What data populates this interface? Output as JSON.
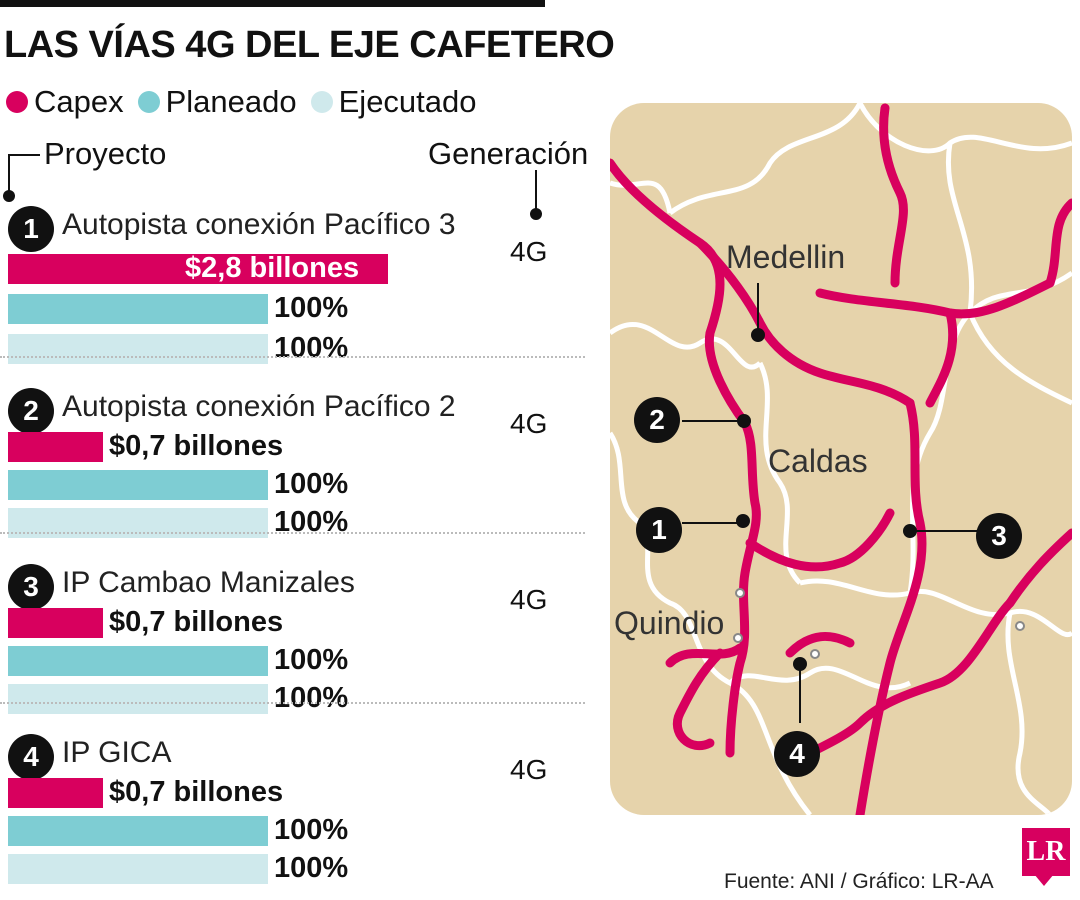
{
  "title": "LAS VÍAS 4G DEL EJE CAFETERO",
  "legend": [
    {
      "label": "Capex",
      "color": "#d8005e"
    },
    {
      "label": "Planeado",
      "color": "#7ecdd3"
    },
    {
      "label": "Ejecutado",
      "color": "#cfe9ec"
    }
  ],
  "headers": {
    "project": "Proyecto",
    "generation": "Generación"
  },
  "chart_data": {
    "type": "bar",
    "series_names": [
      "Capex",
      "Planeado",
      "Ejecutado"
    ],
    "projects": [
      {
        "number": "1",
        "name": "Autopista conexión Pacífico 3",
        "generation": "4G",
        "capex": 2.8,
        "capex_label": "$2,8 billones",
        "planeado": 100,
        "planeado_label": "100%",
        "ejecutado": 100,
        "ejecutado_label": "100%"
      },
      {
        "number": "2",
        "name": "Autopista conexión Pacífico 2",
        "generation": "4G",
        "capex": 0.7,
        "capex_label": "$0,7 billones",
        "planeado": 100,
        "planeado_label": "100%",
        "ejecutado": 100,
        "ejecutado_label": "100%"
      },
      {
        "number": "3",
        "name": "IP Cambao Manizales",
        "generation": "4G",
        "capex": 0.7,
        "capex_label": "$0,7 billones",
        "planeado": 100,
        "planeado_label": "100%",
        "ejecutado": 100,
        "ejecutado_label": "100%"
      },
      {
        "number": "4",
        "name": "IP GICA",
        "generation": "4G",
        "capex": 0.7,
        "capex_label": "$0,7 billones",
        "planeado": 100,
        "planeado_label": "100%",
        "ejecutado": 100,
        "ejecutado_label": "100%"
      }
    ]
  },
  "map": {
    "labels": {
      "medellin": "Medellin",
      "caldas": "Caldas",
      "quindio": "Quindio"
    },
    "markers": [
      "1",
      "2",
      "3",
      "4"
    ],
    "colors": {
      "land": "#e6d3ab",
      "roads": "#d8005e",
      "borders": "#ffffff"
    }
  },
  "source": "Fuente: ANI / Gráfico: LR-AA",
  "logo": "LR"
}
